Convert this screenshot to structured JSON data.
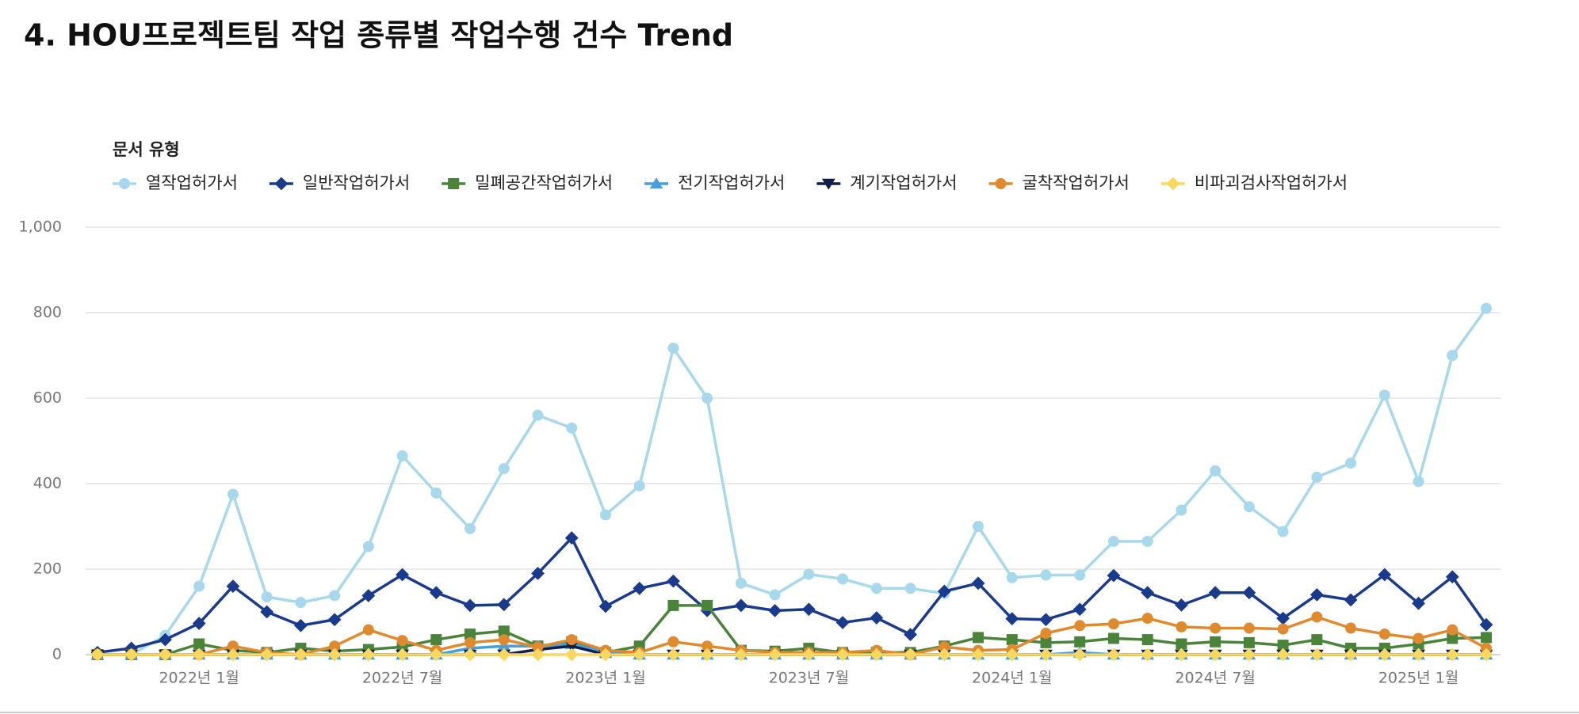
{
  "chart_data": {
    "type": "line",
    "title": "4.  HOU프로젝트팀 작업 종류별 작업수행 건수 Trend",
    "legend_title": "문서 유형",
    "categories": [
      null,
      null,
      null,
      "2022년 1월",
      null,
      null,
      null,
      null,
      null,
      "2022년 7월",
      null,
      null,
      null,
      null,
      null,
      "2023년 1월",
      null,
      null,
      null,
      null,
      null,
      "2023년 7월",
      null,
      null,
      null,
      null,
      null,
      "2024년 1월",
      null,
      null,
      null,
      null,
      null,
      "2024년 7월",
      null,
      null,
      null,
      null,
      null,
      "2025년 1월",
      null,
      null
    ],
    "ylim": [
      0,
      1000
    ],
    "yticks": [
      0,
      200,
      400,
      600,
      800,
      {
        "value": 1000,
        "label": "1,000"
      }
    ],
    "grid": true,
    "legend": "top-left",
    "series": [
      {
        "name": "열작업허가서",
        "color": "#a8d8ec",
        "marker": "circle",
        "values": [
          0,
          0,
          45,
          160,
          375,
          135,
          122,
          138,
          253,
          465,
          378,
          295,
          435,
          560,
          530,
          327,
          395,
          717,
          600,
          167,
          140,
          188,
          177,
          155,
          155,
          143,
          300,
          180,
          186,
          186,
          265,
          265,
          338,
          430,
          346,
          288,
          415,
          448,
          607,
          405,
          700,
          810
        ]
      },
      {
        "name": "일반작업허가서",
        "color": "#1a3a8c",
        "marker": "diamond",
        "values": [
          5,
          15,
          35,
          73,
          160,
          100,
          68,
          82,
          138,
          187,
          145,
          115,
          117,
          190,
          273,
          113,
          155,
          172,
          103,
          115,
          103,
          106,
          75,
          86,
          47,
          148,
          167,
          84,
          82,
          106,
          185,
          145,
          116,
          145,
          145,
          85,
          140,
          128,
          187,
          120,
          182,
          70
        ]
      },
      {
        "name": "밀폐공간작업허가서",
        "color": "#4a843a",
        "marker": "square",
        "values": [
          0,
          0,
          0,
          25,
          10,
          5,
          15,
          8,
          12,
          18,
          35,
          48,
          55,
          20,
          30,
          5,
          20,
          115,
          115,
          10,
          8,
          15,
          5,
          5,
          5,
          20,
          40,
          35,
          28,
          30,
          38,
          35,
          25,
          30,
          28,
          22,
          35,
          15,
          15,
          25,
          38,
          40
        ]
      },
      {
        "name": "전기작업허가서",
        "color": "#4a9fd8",
        "marker": "triangle",
        "values": [
          0,
          0,
          0,
          0,
          0,
          0,
          0,
          0,
          0,
          0,
          0,
          15,
          20,
          20,
          25,
          5,
          0,
          0,
          0,
          0,
          0,
          0,
          0,
          0,
          0,
          0,
          0,
          0,
          0,
          5,
          0,
          0,
          0,
          0,
          0,
          0,
          0,
          0,
          0,
          0,
          0,
          0
        ]
      },
      {
        "name": "계기작업허가서",
        "color": "#101e4a",
        "marker": "triangle-down",
        "values": [
          0,
          0,
          0,
          0,
          0,
          0,
          0,
          0,
          0,
          0,
          0,
          0,
          0,
          12,
          20,
          0,
          0,
          0,
          0,
          0,
          0,
          0,
          0,
          0,
          0,
          0,
          0,
          0,
          0,
          0,
          0,
          0,
          0,
          0,
          0,
          0,
          0,
          0,
          0,
          0,
          0,
          0
        ]
      },
      {
        "name": "굴착작업허가서",
        "color": "#e08a30",
        "marker": "circle",
        "values": [
          0,
          0,
          0,
          0,
          20,
          5,
          0,
          20,
          58,
          33,
          10,
          28,
          35,
          18,
          35,
          10,
          5,
          30,
          20,
          10,
          5,
          5,
          5,
          10,
          0,
          18,
          10,
          12,
          50,
          68,
          72,
          85,
          65,
          62,
          62,
          60,
          88,
          62,
          48,
          38,
          58,
          15
        ]
      },
      {
        "name": "비파괴검사작업허가서",
        "color": "#f8d860",
        "marker": "diamond",
        "values": [
          0,
          0,
          0,
          0,
          0,
          0,
          0,
          0,
          0,
          0,
          0,
          0,
          0,
          0,
          0,
          0,
          0,
          0,
          0,
          0,
          0,
          0,
          0,
          0,
          0,
          0,
          0,
          0,
          0,
          0,
          0,
          0,
          0,
          0,
          0,
          0,
          0,
          0,
          0,
          0,
          0,
          0
        ]
      }
    ]
  }
}
